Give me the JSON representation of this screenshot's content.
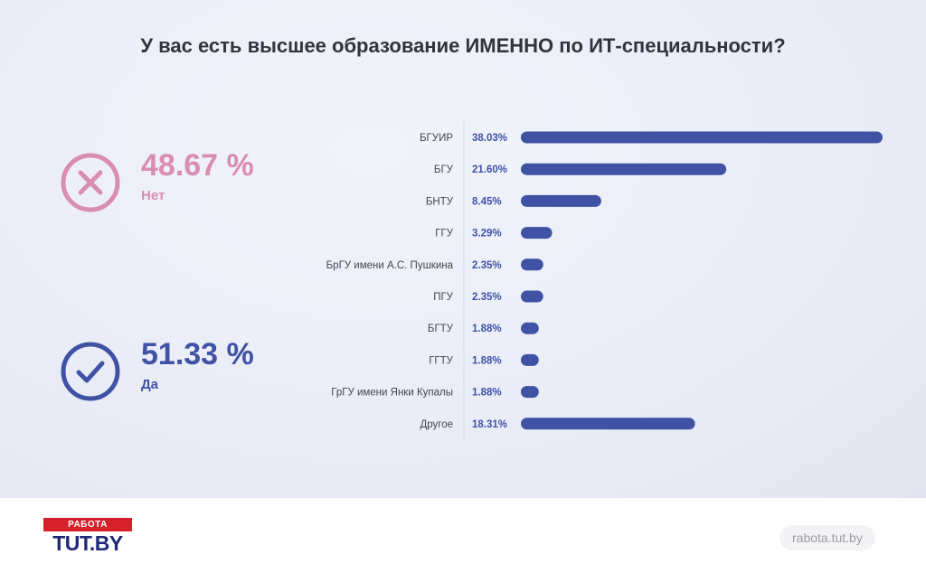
{
  "title": "У вас есть высшее образование ИМЕННО по ИТ-специальности?",
  "summary": {
    "no": {
      "value": "48.67 %",
      "label": "Нет",
      "icon": "x-circle-icon",
      "color": "#d98cb4"
    },
    "yes": {
      "value": "51.33 %",
      "label": "Да",
      "icon": "check-circle-icon",
      "color": "#3f52a4"
    }
  },
  "chart_data": {
    "type": "bar",
    "orientation": "horizontal",
    "categories": [
      "БГУИР",
      "БГУ",
      "БНТУ",
      "ГГУ",
      "БрГУ имени А.С. Пушкина",
      "ПГУ",
      "БГТУ",
      "ГГТУ",
      "ГрГУ имени Янки Купалы",
      "Другое"
    ],
    "values": [
      38.03,
      21.6,
      8.45,
      3.29,
      2.35,
      2.35,
      1.88,
      1.88,
      1.88,
      18.31
    ],
    "value_labels": [
      "38.03%",
      "21.60%",
      "8.45%",
      "3.29%",
      "2.35%",
      "2.35%",
      "1.88%",
      "1.88%",
      "1.88%",
      "18.31%"
    ],
    "bar_color": "#3f52a4",
    "xlim": [
      0,
      38.03
    ],
    "grid": false
  },
  "footer": {
    "logo_top": "РАБОТА",
    "logo_main": "TUT.BY",
    "site": "rabota.tut.by"
  }
}
